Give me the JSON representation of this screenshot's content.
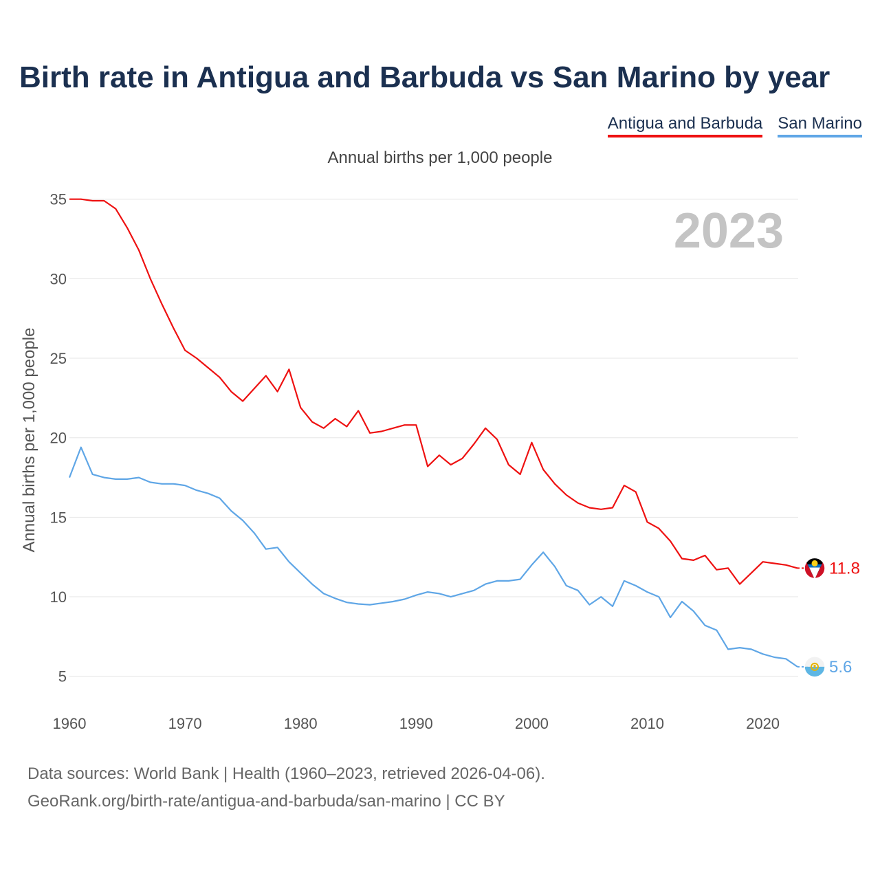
{
  "header": {
    "title": "Birth rate in Antigua and Barbuda vs San Marino by year",
    "subtitle": "Annual births per 1,000 people"
  },
  "legend": {
    "antigua": "Antigua and Barbuda",
    "san_marino": "San Marino"
  },
  "year_watermark": "2023",
  "footer": {
    "line1": "Data sources: World Bank | Health (1960–2023, retrieved 2026-04-06).",
    "line2": "GeoRank.org/birth-rate/antigua-and-barbuda/san-marino | CC BY"
  },
  "colors": {
    "antigua": "#ee1111",
    "san_marino": "#5fa6e6",
    "title": "#1b3050",
    "grid": "#e6e6e6",
    "watermark": "#c4c4c4"
  },
  "chart_data": {
    "type": "line",
    "title": "Birth rate in Antigua and Barbuda vs San Marino by year",
    "xlabel": "",
    "ylabel": "Annual births per 1,000 people",
    "xlim": [
      1960,
      2023
    ],
    "ylim": [
      3,
      36.5
    ],
    "x_ticks": [
      1960,
      1970,
      1980,
      1990,
      2000,
      2010,
      2020
    ],
    "y_ticks": [
      5,
      10,
      15,
      20,
      25,
      30,
      35
    ],
    "grid": true,
    "x": [
      1960,
      1961,
      1962,
      1963,
      1964,
      1965,
      1966,
      1967,
      1968,
      1969,
      1970,
      1971,
      1972,
      1973,
      1974,
      1975,
      1976,
      1977,
      1978,
      1979,
      1980,
      1981,
      1982,
      1983,
      1984,
      1985,
      1986,
      1987,
      1988,
      1989,
      1990,
      1991,
      1992,
      1993,
      1994,
      1995,
      1996,
      1997,
      1998,
      1999,
      2000,
      2001,
      2002,
      2003,
      2004,
      2005,
      2006,
      2007,
      2008,
      2009,
      2010,
      2011,
      2012,
      2013,
      2014,
      2015,
      2016,
      2017,
      2018,
      2019,
      2020,
      2021,
      2022,
      2023
    ],
    "series": [
      {
        "name": "Antigua and Barbuda",
        "color": "#ee1111",
        "end_label": "11.8",
        "values": [
          35.0,
          35.0,
          34.9,
          34.9,
          34.4,
          33.2,
          31.8,
          30.0,
          28.4,
          26.9,
          25.5,
          25.0,
          24.4,
          23.8,
          22.9,
          22.3,
          23.1,
          23.9,
          22.9,
          24.3,
          21.9,
          21.0,
          20.6,
          21.2,
          20.7,
          21.7,
          20.3,
          20.4,
          20.6,
          20.8,
          20.8,
          18.2,
          18.9,
          18.3,
          18.7,
          19.6,
          20.6,
          19.9,
          18.3,
          17.7,
          19.7,
          18.0,
          17.1,
          16.4,
          15.9,
          15.6,
          15.5,
          15.6,
          17.0,
          16.6,
          14.7,
          14.3,
          13.5,
          12.4,
          12.3,
          12.6,
          11.7,
          11.8,
          10.8,
          11.5,
          12.2,
          12.1,
          12.0,
          11.8
        ]
      },
      {
        "name": "San Marino",
        "color": "#5fa6e6",
        "end_label": "5.6",
        "values": [
          17.5,
          19.4,
          17.7,
          17.5,
          17.4,
          17.4,
          17.5,
          17.2,
          17.1,
          17.1,
          17.0,
          16.7,
          16.5,
          16.2,
          15.4,
          14.8,
          14.0,
          13.0,
          13.1,
          12.2,
          11.5,
          10.8,
          10.2,
          9.9,
          9.65,
          9.55,
          9.5,
          9.6,
          9.7,
          9.85,
          10.1,
          10.3,
          10.2,
          10.0,
          10.2,
          10.4,
          10.8,
          11.0,
          11.0,
          11.1,
          12.0,
          12.8,
          11.9,
          10.7,
          10.4,
          9.5,
          10.0,
          9.4,
          11.0,
          10.7,
          10.3,
          10.0,
          8.7,
          9.7,
          9.1,
          8.2,
          7.9,
          6.7,
          6.8,
          6.7,
          6.4,
          6.2,
          6.1,
          5.6
        ]
      }
    ]
  }
}
